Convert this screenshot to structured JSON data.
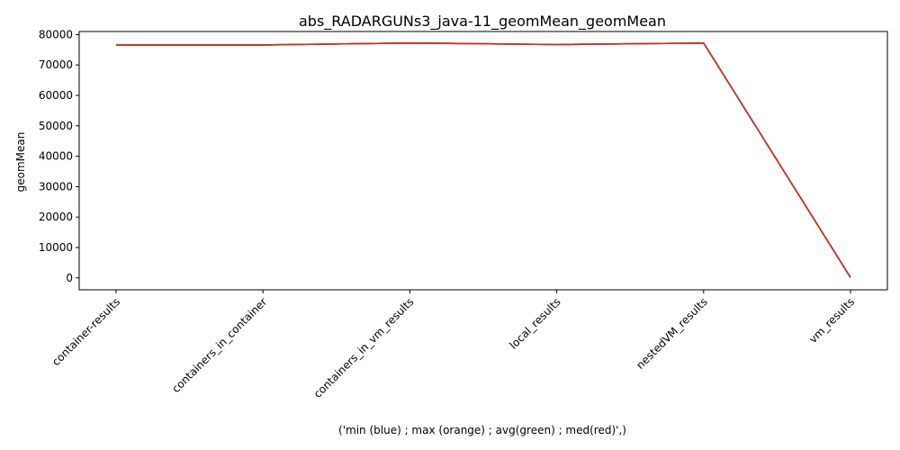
{
  "chart_data": {
    "type": "line",
    "title": "abs_RADARGUNs3_java-11_geomMean_geomMean",
    "xlabel": "('min (blue) ; max (orange) ; avg(green) ; med(red)',)",
    "ylabel": "geomMean",
    "categories": [
      "container-results",
      "containers_in_container",
      "containers_in_vm_results",
      "local_results",
      "nestedVM_results",
      "vm_results"
    ],
    "ylim": [
      -3900,
      81000
    ],
    "yticks": [
      0,
      10000,
      20000,
      30000,
      40000,
      50000,
      60000,
      70000,
      80000
    ],
    "grid": false,
    "series": [
      {
        "color": "#1f77b4",
        "values": [
          76600,
          76600,
          77200,
          76700,
          77200,
          150
        ]
      },
      {
        "color": "#ff7f0e",
        "values": [
          76600,
          76600,
          77200,
          76700,
          77200,
          150
        ]
      },
      {
        "color": "#2ca02c",
        "values": [
          76600,
          76600,
          77200,
          76700,
          77200,
          150
        ]
      },
      {
        "color": "#d62728",
        "values": [
          76600,
          76600,
          77200,
          76700,
          77200,
          150
        ]
      }
    ]
  }
}
